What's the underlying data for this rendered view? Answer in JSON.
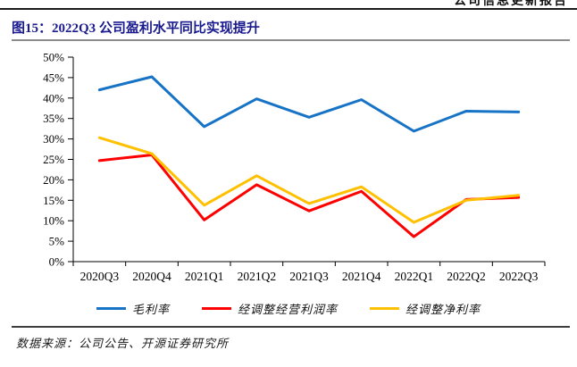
{
  "page": {
    "header_right": "公司信息更新报告",
    "figure_title": "图15：2022Q3 公司盈利水平同比实现提升",
    "source_note": "数据来源：公司公告、开源证券研究所"
  },
  "colors": {
    "title_navy": "#1a1a8f",
    "rule_gray": "#8c8c8c",
    "axis": "#000000"
  },
  "chart_data": {
    "type": "line",
    "title": "图15：2022Q3 公司盈利水平同比实现提升",
    "categories": [
      "2020Q3",
      "2020Q4",
      "2021Q1",
      "2021Q2",
      "2021Q3",
      "2021Q4",
      "2022Q1",
      "2022Q2",
      "2022Q3"
    ],
    "series": [
      {
        "name": "毛利率",
        "color": "#1673C5",
        "values": [
          42.0,
          45.2,
          33.0,
          39.8,
          35.3,
          39.6,
          31.9,
          36.8,
          36.6
        ]
      },
      {
        "name": "经调整经营利润率",
        "color": "#FE0000",
        "values": [
          24.7,
          26.1,
          10.2,
          18.8,
          12.4,
          17.2,
          6.1,
          15.2,
          15.7
        ]
      },
      {
        "name": "经调整净利率",
        "color": "#FFC000",
        "values": [
          30.3,
          26.4,
          13.8,
          21.0,
          14.2,
          18.3,
          9.6,
          15.0,
          16.2
        ]
      }
    ],
    "ylim": [
      0,
      50
    ],
    "ytick_step": 5,
    "ytick_labels": [
      "0%",
      "5%",
      "10%",
      "15%",
      "20%",
      "25%",
      "30%",
      "35%",
      "40%",
      "45%",
      "50%"
    ],
    "xlabel": "",
    "ylabel": "",
    "grid": false,
    "legend_position": "bottom"
  }
}
